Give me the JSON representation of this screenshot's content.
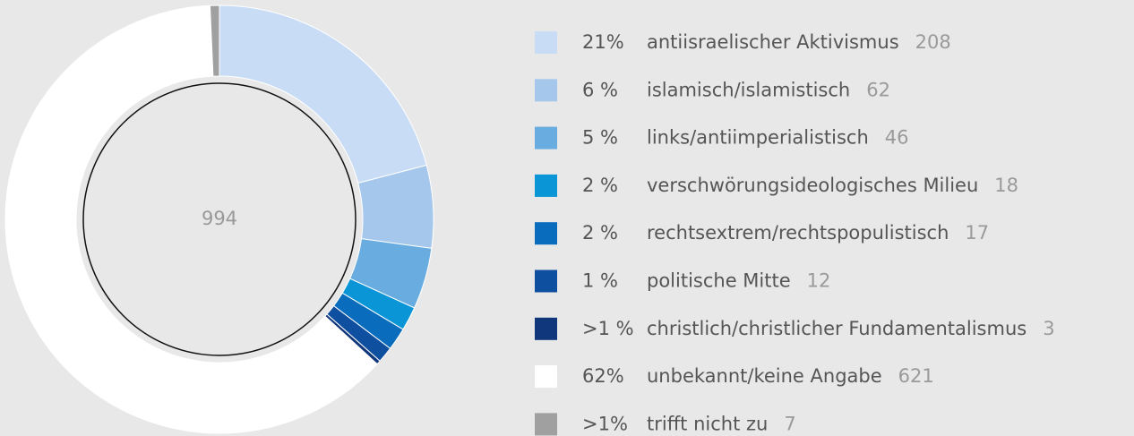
{
  "chart_data": {
    "type": "donut",
    "total": 994,
    "categories": [
      "antiisraelischer Aktivismus",
      "islamisch/islamistisch",
      "links/antiimperialistisch",
      "verschwörungsideologisches Milieu",
      "rechtsextrem/rechtspopulistisch",
      "politische Mitte",
      "christlich/christlicher Fundamentalismus",
      "unbekannt/keine Angabe",
      "trifft nicht zu"
    ],
    "values": [
      208,
      62,
      46,
      18,
      17,
      12,
      3,
      621,
      7
    ],
    "percent_labels": [
      "21%",
      "6 %",
      "5 %",
      "2 %",
      "2 %",
      "1 %",
      ">1 %",
      "62%",
      ">1%"
    ],
    "colors": [
      "#c8dcf6",
      "#a5c7ec",
      "#69ace0",
      "#0a95d7",
      "#0a6cbd",
      "#0f4f9f",
      "#10367b",
      "#ffffff",
      "#a0a0a0"
    ]
  }
}
